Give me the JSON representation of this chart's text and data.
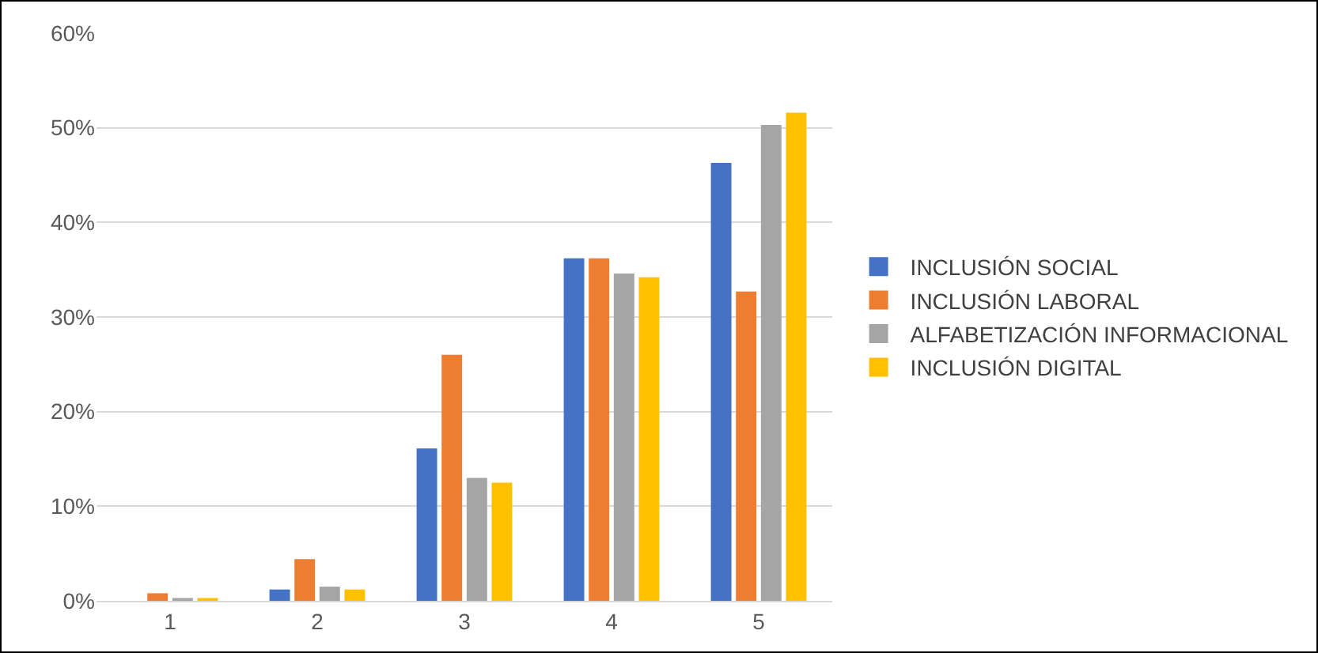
{
  "chart_data": {
    "type": "bar",
    "categories": [
      "1",
      "2",
      "3",
      "4",
      "5"
    ],
    "series": [
      {
        "name": "INCLUSIÓN SOCIAL",
        "color": "#4472c4",
        "values": [
          0,
          1.2,
          16.1,
          36.2,
          46.3
        ]
      },
      {
        "name": "INCLUSIÓN LABORAL",
        "color": "#ed7d31",
        "values": [
          0.8,
          4.4,
          26.0,
          36.2,
          32.7
        ]
      },
      {
        "name": "ALFABETIZACIÓN INFORMACIONAL",
        "color": "#a5a5a5",
        "values": [
          0.3,
          1.5,
          13.0,
          34.6,
          50.3
        ]
      },
      {
        "name": "INCLUSIÓN DIGITAL",
        "color": "#ffc000",
        "values": [
          0.3,
          1.2,
          12.5,
          34.2,
          51.6
        ]
      }
    ],
    "ylim": [
      0,
      60
    ],
    "yticks": [
      {
        "value": 0,
        "label": "0%"
      },
      {
        "value": 10,
        "label": "10%"
      },
      {
        "value": 20,
        "label": "20%"
      },
      {
        "value": 30,
        "label": "30%"
      },
      {
        "value": 40,
        "label": "40%"
      },
      {
        "value": 50,
        "label": "50%"
      },
      {
        "value": 60,
        "label": "60%"
      }
    ],
    "grid": "y",
    "legend": "right"
  }
}
